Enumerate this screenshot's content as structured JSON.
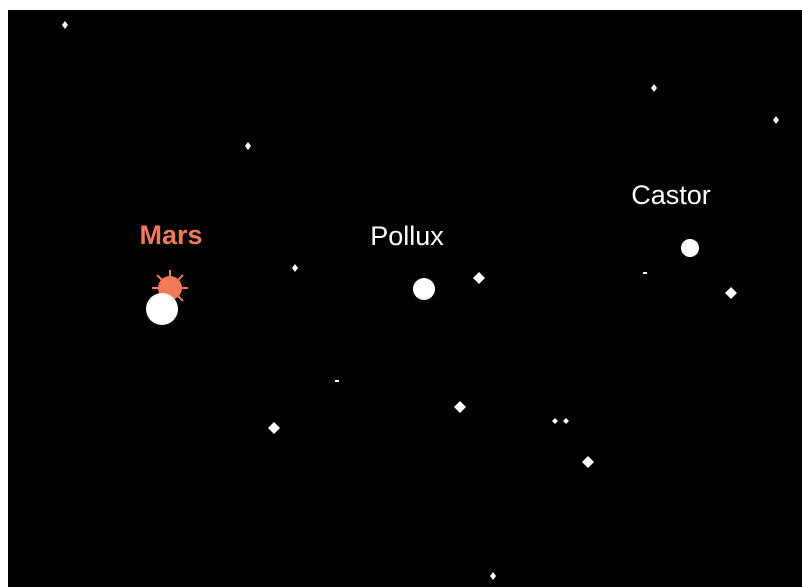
{
  "labels": {
    "mars": "Mars",
    "pollux": "Pollux",
    "castor": "Castor"
  }
}
